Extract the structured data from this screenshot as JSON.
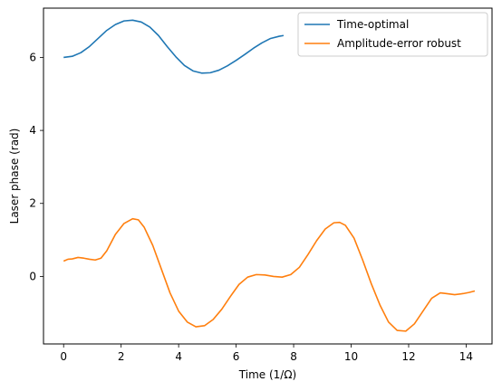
{
  "chart_data": {
    "type": "line",
    "title": "",
    "xlabel": "Time (1/Ω)",
    "ylabel": "Laser phase (rad)",
    "xlim": [
      -0.7,
      14.9
    ],
    "ylim": [
      -1.85,
      7.35
    ],
    "xticks": [
      0,
      2,
      4,
      6,
      8,
      10,
      12,
      14
    ],
    "yticks": [
      0,
      2,
      4,
      6
    ],
    "legend_position": "upper right",
    "grid": false,
    "series": [
      {
        "name": "Time-optimal",
        "color": "#1f77b4",
        "x": [
          0.0,
          0.3,
          0.6,
          0.9,
          1.2,
          1.5,
          1.8,
          2.1,
          2.4,
          2.7,
          3.0,
          3.3,
          3.6,
          3.9,
          4.2,
          4.5,
          4.8,
          5.1,
          5.4,
          5.7,
          6.0,
          6.3,
          6.6,
          6.9,
          7.2,
          7.5,
          7.65
        ],
        "values": [
          6.0,
          6.03,
          6.13,
          6.3,
          6.52,
          6.74,
          6.9,
          7.0,
          7.02,
          6.97,
          6.83,
          6.6,
          6.3,
          6.02,
          5.78,
          5.63,
          5.57,
          5.58,
          5.65,
          5.77,
          5.92,
          6.08,
          6.25,
          6.4,
          6.52,
          6.58,
          6.6
        ]
      },
      {
        "name": "Amplitude-error robust",
        "color": "#ff7f0e",
        "x": [
          0.0,
          0.15,
          0.3,
          0.5,
          0.7,
          0.9,
          1.1,
          1.3,
          1.5,
          1.8,
          2.1,
          2.4,
          2.6,
          2.8,
          3.1,
          3.4,
          3.7,
          4.0,
          4.3,
          4.6,
          4.9,
          5.2,
          5.5,
          5.8,
          6.1,
          6.4,
          6.7,
          7.0,
          7.3,
          7.6,
          7.9,
          8.2,
          8.5,
          8.8,
          9.1,
          9.4,
          9.6,
          9.8,
          10.1,
          10.4,
          10.7,
          11.0,
          11.3,
          11.6,
          11.9,
          12.2,
          12.5,
          12.8,
          13.1,
          13.3,
          13.6,
          13.9,
          14.1,
          14.3
        ],
        "values": [
          0.42,
          0.47,
          0.48,
          0.52,
          0.5,
          0.47,
          0.45,
          0.5,
          0.7,
          1.15,
          1.45,
          1.58,
          1.55,
          1.35,
          0.85,
          0.2,
          -0.45,
          -0.95,
          -1.25,
          -1.38,
          -1.35,
          -1.18,
          -0.9,
          -0.55,
          -0.22,
          -0.02,
          0.05,
          0.04,
          0.0,
          -0.02,
          0.05,
          0.25,
          0.6,
          0.98,
          1.3,
          1.47,
          1.48,
          1.4,
          1.05,
          0.45,
          -0.2,
          -0.78,
          -1.25,
          -1.48,
          -1.5,
          -1.3,
          -0.95,
          -0.6,
          -0.45,
          -0.47,
          -0.5,
          -0.47,
          -0.44,
          -0.4
        ]
      }
    ]
  }
}
